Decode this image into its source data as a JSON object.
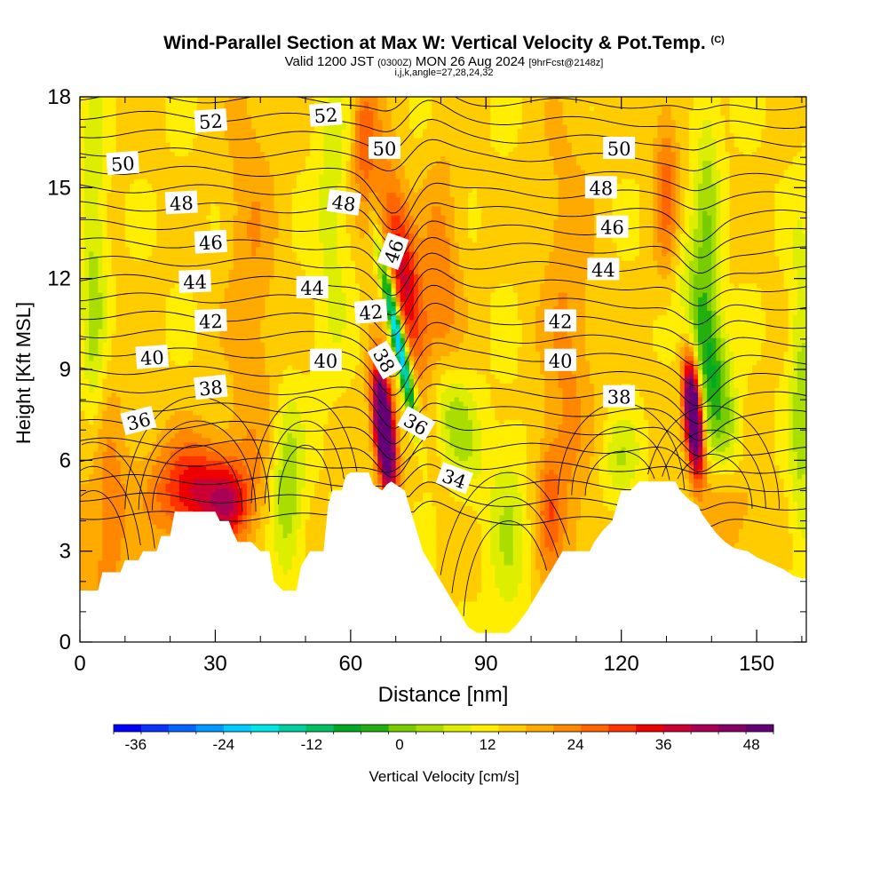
{
  "header": {
    "title_main": "Wind-Parallel Section at Max W: Vertical Velocity & Pot.Temp.",
    "title_copyright": "(C)",
    "subtitle_a": "Valid 1200 JST",
    "subtitle_b": "(0300Z)",
    "subtitle_c": "MON 26 Aug 2024",
    "subtitle_d": "[9hrFcst@2148z]",
    "indices": "i,j,k,angle=27,28,24,32"
  },
  "chart_data": {
    "type": "heatmap",
    "title": "Wind-Parallel Section at Max W: Vertical Velocity & Pot.Temp.",
    "xlabel": "Distance [nm]",
    "ylabel": "Height [Kft MSL]",
    "xlim": [
      0,
      161
    ],
    "ylim": [
      0,
      18
    ],
    "x_ticks": [
      "0",
      "30",
      "60",
      "90",
      "120",
      "150"
    ],
    "y_ticks": [
      "0",
      "3",
      "6",
      "9",
      "12",
      "15",
      "18"
    ],
    "colorbar": {
      "label": "Vertical Velocity [cm/s]",
      "min": -39,
      "max": 51,
      "step": 3,
      "tick_labels": [
        "-36",
        "-24",
        "-12",
        "0",
        "12",
        "24",
        "36",
        "48"
      ],
      "colors": [
        "#0000ff",
        "#0a33ff",
        "#0066ff",
        "#0099ff",
        "#00ccff",
        "#00e5e5",
        "#00d0a0",
        "#00c060",
        "#00aa22",
        "#22b011",
        "#77cc00",
        "#aadd00",
        "#ddee00",
        "#ffee00",
        "#ffcc00",
        "#ffaa00",
        "#ff8800",
        "#ff6600",
        "#ff3300",
        "#ee0000",
        "#cc0033",
        "#aa0055",
        "#880066",
        "#660077"
      ]
    },
    "terrain_kft": [
      [
        0,
        1.7
      ],
      [
        4,
        1.7
      ],
      [
        5,
        2.3
      ],
      [
        9,
        2.3
      ],
      [
        10,
        2.7
      ],
      [
        13,
        2.7
      ],
      [
        14,
        3
      ],
      [
        17,
        3
      ],
      [
        18,
        3.5
      ],
      [
        20,
        3.5
      ],
      [
        21,
        4.3
      ],
      [
        30,
        4.3
      ],
      [
        31,
        4
      ],
      [
        33,
        4
      ],
      [
        34,
        3.6
      ],
      [
        35,
        3.3
      ],
      [
        38,
        3.3
      ],
      [
        40,
        3
      ],
      [
        42,
        3
      ],
      [
        43,
        2
      ],
      [
        45,
        1.7
      ],
      [
        48,
        1.7
      ],
      [
        49,
        2.5
      ],
      [
        51,
        3
      ],
      [
        54,
        3
      ],
      [
        55,
        4.5
      ],
      [
        56,
        5
      ],
      [
        58,
        5
      ],
      [
        59,
        5.5
      ],
      [
        60,
        5.6
      ],
      [
        64,
        5.6
      ],
      [
        65,
        5.2
      ],
      [
        67,
        5
      ],
      [
        68,
        5.2
      ],
      [
        69,
        5.3
      ],
      [
        72,
        5
      ],
      [
        73,
        4.5
      ],
      [
        74,
        4
      ],
      [
        75,
        3.5
      ],
      [
        76,
        3
      ],
      [
        78,
        2.5
      ],
      [
        80,
        2
      ],
      [
        82,
        1.5
      ],
      [
        84,
        1
      ],
      [
        86,
        0.5
      ],
      [
        88,
        0.3
      ],
      [
        92,
        0.3
      ],
      [
        95,
        0.3
      ],
      [
        97,
        0.6
      ],
      [
        99,
        1
      ],
      [
        101,
        1.5
      ],
      [
        103,
        2
      ],
      [
        105,
        2.5
      ],
      [
        107,
        3
      ],
      [
        113,
        3
      ],
      [
        114,
        3.3
      ],
      [
        116,
        3.7
      ],
      [
        118,
        4
      ],
      [
        119,
        4.5
      ],
      [
        120,
        5
      ],
      [
        122,
        5
      ],
      [
        124,
        5.3
      ],
      [
        132,
        5.3
      ],
      [
        133,
        5
      ],
      [
        135,
        4.7
      ],
      [
        137,
        4.5
      ],
      [
        138,
        4.2
      ],
      [
        139,
        4
      ],
      [
        141,
        3.6
      ],
      [
        143,
        3.3
      ],
      [
        145,
        3.1
      ],
      [
        148,
        3
      ],
      [
        150,
        2.8
      ],
      [
        153,
        2.6
      ],
      [
        156,
        2.4
      ],
      [
        158,
        2.2
      ],
      [
        160,
        2.1
      ],
      [
        161,
        2.1
      ]
    ],
    "w_features": [
      {
        "x": 67.5,
        "y": 7.0,
        "sx": 1.5,
        "sy": 1.4,
        "w": 48,
        "tilt": -0.2
      },
      {
        "x": 136,
        "y": 7.5,
        "sx": 1.3,
        "sy": 1.3,
        "w": 45,
        "tilt": -0.15
      },
      {
        "x": 70.5,
        "y": 10.0,
        "sx": 1.0,
        "sy": 1.8,
        "w": -35,
        "tilt": -0.45
      },
      {
        "x": 72,
        "y": 12.0,
        "sx": 2.5,
        "sy": 2.5,
        "w": 18,
        "tilt": -0.35
      },
      {
        "x": 26,
        "y": 5.0,
        "sx": 7.0,
        "sy": 1.2,
        "w": 18
      },
      {
        "x": 33,
        "y": 4.5,
        "sx": 3.0,
        "sy": 0.8,
        "w": 10
      },
      {
        "x": 46,
        "y": 5.0,
        "sx": 2.5,
        "sy": 2.0,
        "w": -10
      },
      {
        "x": 5,
        "y": 4.0,
        "sx": 4.0,
        "sy": 3.0,
        "w": 9
      },
      {
        "x": 3,
        "y": 11.0,
        "sx": 2.0,
        "sy": 5.0,
        "w": -8
      },
      {
        "x": 82,
        "y": 7.5,
        "sx": 4.0,
        "sy": 1.5,
        "w": -10,
        "tilt": -0.5
      },
      {
        "x": 80,
        "y": 11.5,
        "sx": 3.0,
        "sy": 3.0,
        "w": 8
      },
      {
        "x": 140,
        "y": 9.0,
        "sx": 3.0,
        "sy": 2.5,
        "w": -14,
        "tilt": -0.4
      },
      {
        "x": 139,
        "y": 14.0,
        "sx": 2.0,
        "sy": 3.5,
        "w": -8
      },
      {
        "x": 130,
        "y": 15.0,
        "sx": 2.0,
        "sy": 2.0,
        "w": 10
      },
      {
        "x": 95,
        "y": 3.5,
        "sx": 3.0,
        "sy": 2.5,
        "w": -6
      },
      {
        "x": 108,
        "y": 9.0,
        "sx": 4.0,
        "sy": 6.0,
        "w": 6
      },
      {
        "x": 38,
        "y": 12.0,
        "sx": 4.0,
        "sy": 6.0,
        "w": 5
      },
      {
        "x": 160,
        "y": 8.0,
        "sx": 2.0,
        "sy": 4.0,
        "w": -8
      },
      {
        "x": 120,
        "y": 6.0,
        "sx": 3.0,
        "sy": 1.0,
        "w": -6
      },
      {
        "x": 104,
        "y": 4.5,
        "sx": 2.0,
        "sy": 1.5,
        "w": 8
      },
      {
        "x": 145,
        "y": 4.5,
        "sx": 4.0,
        "sy": 1.2,
        "w": 7
      },
      {
        "x": 63,
        "y": 16.5,
        "sx": 2.0,
        "sy": 2.0,
        "w": 10
      },
      {
        "x": 56,
        "y": 14.5,
        "sx": 3.0,
        "sy": 4.0,
        "w": -5
      }
    ],
    "theta_labels": [
      {
        "text": "52",
        "x": 29,
        "y": 17.2,
        "rot": -4
      },
      {
        "text": "52",
        "x": 54.5,
        "y": 17.4,
        "rot": -4
      },
      {
        "text": "50",
        "x": 9.5,
        "y": 15.8,
        "rot": -4
      },
      {
        "text": "50",
        "x": 67.5,
        "y": 16.3,
        "rot": 0
      },
      {
        "text": "50",
        "x": 119.5,
        "y": 16.3,
        "rot": 0
      },
      {
        "text": "48",
        "x": 22.5,
        "y": 14.5,
        "rot": -3
      },
      {
        "text": "48",
        "x": 58.5,
        "y": 14.5,
        "rot": 8
      },
      {
        "text": "48",
        "x": 115.5,
        "y": 15.0,
        "rot": 0
      },
      {
        "text": "46",
        "x": 29,
        "y": 13.2,
        "rot": -3
      },
      {
        "text": "46",
        "x": 69.5,
        "y": 12.9,
        "rot": -70
      },
      {
        "text": "46",
        "x": 118,
        "y": 13.7,
        "rot": 0
      },
      {
        "text": "44",
        "x": 25.5,
        "y": 11.9,
        "rot": -2
      },
      {
        "text": "44",
        "x": 51.5,
        "y": 11.7,
        "rot": 0
      },
      {
        "text": "44",
        "x": 116,
        "y": 12.3,
        "rot": 0
      },
      {
        "text": "42",
        "x": 29,
        "y": 10.6,
        "rot": -2
      },
      {
        "text": "42",
        "x": 64.5,
        "y": 10.9,
        "rot": -5
      },
      {
        "text": "42",
        "x": 106.5,
        "y": 10.6,
        "rot": 0
      },
      {
        "text": "40",
        "x": 16,
        "y": 9.4,
        "rot": -4
      },
      {
        "text": "40",
        "x": 54.5,
        "y": 9.3,
        "rot": 0
      },
      {
        "text": "40",
        "x": 106.5,
        "y": 9.3,
        "rot": 0
      },
      {
        "text": "38",
        "x": 29,
        "y": 8.4,
        "rot": -6
      },
      {
        "text": "38",
        "x": 67.5,
        "y": 9.3,
        "rot": 60
      },
      {
        "text": "38",
        "x": 119.5,
        "y": 8.1,
        "rot": 0
      },
      {
        "text": "36",
        "x": 13,
        "y": 7.3,
        "rot": -14
      },
      {
        "text": "36",
        "x": 74.5,
        "y": 7.2,
        "rot": 30
      },
      {
        "text": "34",
        "x": 83,
        "y": 5.4,
        "rot": 20
      }
    ]
  }
}
